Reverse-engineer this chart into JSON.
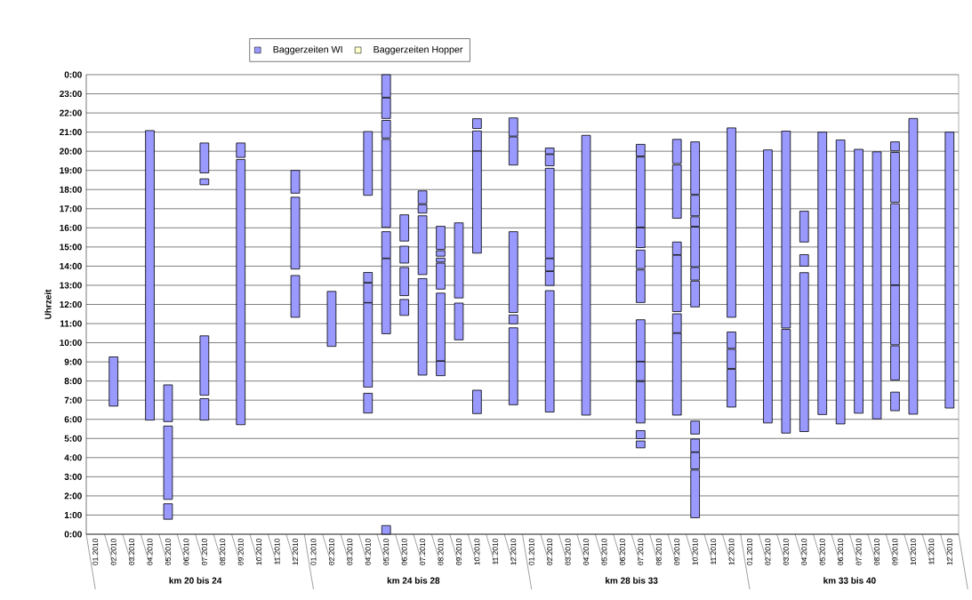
{
  "chart_data": {
    "type": "bar",
    "ylabel": "Uhrzeit",
    "categories": [
      "01.2010",
      "02.2010",
      "03.2010",
      "04.2010",
      "05.2010",
      "06.2010",
      "07.2010",
      "08.2010",
      "09.2010",
      "10.2010",
      "11.2010",
      "12.2010",
      "01.2010",
      "02.2010",
      "03.2010",
      "04.2010",
      "05.2010",
      "06.2010",
      "07.2010",
      "08.2010",
      "09.2010",
      "10.2010",
      "11.2010",
      "12.2010",
      "01.2010",
      "02.2010",
      "03.2010",
      "04.2010",
      "05.2010",
      "06.2010",
      "07.2010",
      "08.2010",
      "09.2010",
      "10.2010",
      "11.2010",
      "12.2010",
      "01.2010",
      "02.2010",
      "03.2010",
      "04.2010",
      "05.2010",
      "06.2010",
      "07.2010",
      "08.2010",
      "09.2010",
      "10.2010",
      "11.2010",
      "12.2010"
    ],
    "annotations": [
      "km 20 bis 24",
      "km 24 bis 28",
      "km 28 bis 33",
      "km 33 bis 40"
    ],
    "ylim": [
      0,
      24
    ],
    "yticks": [
      {
        "value": 0,
        "label": "0:00"
      },
      {
        "value": 1,
        "label": "1:00"
      },
      {
        "value": 2,
        "label": "2:00"
      },
      {
        "value": 3,
        "label": "3:00"
      },
      {
        "value": 4,
        "label": "4:00"
      },
      {
        "value": 5,
        "label": "5:00"
      },
      {
        "value": 6,
        "label": "6:00"
      },
      {
        "value": 7,
        "label": "7:00"
      },
      {
        "value": 8,
        "label": "8:00"
      },
      {
        "value": 9,
        "label": "9:00"
      },
      {
        "value": 10,
        "label": "10:00"
      },
      {
        "value": 11,
        "label": "11:00"
      },
      {
        "value": 12,
        "label": "12:00"
      },
      {
        "value": 13,
        "label": "13:00"
      },
      {
        "value": 14,
        "label": "14:00"
      },
      {
        "value": 15,
        "label": "15:00"
      },
      {
        "value": 16,
        "label": "16:00"
      },
      {
        "value": 17,
        "label": "17:00"
      },
      {
        "value": 18,
        "label": "18:00"
      },
      {
        "value": 19,
        "label": "19:00"
      },
      {
        "value": 20,
        "label": "20:00"
      },
      {
        "value": 21,
        "label": "21:00"
      },
      {
        "value": 22,
        "label": "22:00"
      },
      {
        "value": 23,
        "label": "23:00"
      },
      {
        "value": 24,
        "label": "0:00"
      }
    ],
    "grid": "y",
    "legend": "top",
    "series": [
      {
        "name": "Baggerzeiten WI",
        "color": "#9999ff",
        "base": [
          null,
          6.69,
          null,
          5.96,
          0.78,
          null,
          5.96,
          null,
          5.72,
          null,
          null,
          11.33,
          null,
          9.81,
          null,
          6.33,
          0,
          11.43,
          8.31,
          8.28,
          10.15,
          6.3,
          null,
          6.76,
          null,
          6.38,
          null,
          6.22,
          null,
          null,
          4.51,
          null,
          6.22,
          0.86,
          null,
          6.64,
          null,
          5.81,
          5.28,
          5.36,
          6.25,
          5.76,
          6.32,
          6.02,
          6.45,
          6.27,
          null,
          6.59
        ],
        "values": [
          null,
          2.57,
          null,
          15.12,
          0.81,
          null,
          1.12,
          null,
          13.85,
          null,
          null,
          2.18,
          null,
          2.87,
          null,
          1.03,
          0.45,
          0.83,
          5.04,
          0.75,
          1.92,
          1.22,
          null,
          4.02,
          null,
          6.34,
          null,
          14.61,
          null,
          null,
          0.36,
          null,
          4.27,
          2.49,
          null,
          1.97,
          null,
          14.26,
          5.42,
          8.3,
          14.75,
          14.83,
          13.78,
          13.95,
          0.97,
          15.44,
          null,
          14.41
        ]
      },
      {
        "color": "#9999ff",
        "base": [
          null,
          null,
          null,
          null,
          1.82,
          null,
          7.26,
          null,
          19.68,
          null,
          null,
          13.85,
          null,
          null,
          null,
          7.68,
          10.47,
          12.46,
          13.56,
          9.06,
          12.34,
          14.68,
          null,
          10.99,
          null,
          12.99,
          null,
          null,
          null,
          null,
          4.99,
          null,
          10.52,
          3.41,
          null,
          8.66,
          null,
          null,
          10.77,
          14.0,
          null,
          null,
          null,
          null,
          8.05,
          null,
          null,
          null
        ],
        "values": [
          null,
          null,
          null,
          null,
          3.83,
          null,
          3.1,
          null,
          0.75,
          null,
          null,
          3.75,
          null,
          null,
          null,
          4.4,
          3.92,
          1.47,
          3.07,
          3.53,
          3.92,
          5.33,
          null,
          0.46,
          null,
          0.73,
          null,
          null,
          null,
          null,
          0.42,
          null,
          0.99,
          0.86,
          null,
          1.0,
          null,
          null,
          10.28,
          0.6,
          null,
          null,
          null,
          null,
          1.79,
          null,
          null,
          null
        ]
      },
      {
        "color": "#9999ff",
        "base": [
          null,
          null,
          null,
          null,
          5.88,
          null,
          18.25,
          null,
          null,
          null,
          null,
          17.81,
          null,
          null,
          null,
          12.1,
          14.42,
          14.16,
          16.77,
          12.8,
          null,
          20.02,
          null,
          11.58,
          null,
          13.75,
          null,
          null,
          null,
          null,
          5.81,
          null,
          11.63,
          4.3,
          null,
          9.71,
          null,
          null,
          null,
          15.26,
          null,
          null,
          null,
          null,
          9.89,
          null,
          null,
          null
        ],
        "values": [
          null,
          null,
          null,
          null,
          1.92,
          null,
          0.31,
          null,
          null,
          null,
          null,
          1.19,
          null,
          null,
          null,
          1.02,
          1.38,
          0.88,
          0.44,
          1.36,
          null,
          1.04,
          null,
          4.22,
          null,
          0.64,
          null,
          null,
          null,
          null,
          2.16,
          null,
          2.94,
          0.67,
          null,
          0.85,
          null,
          null,
          null,
          1.61,
          null,
          null,
          null,
          null,
          3.1,
          null,
          null,
          null
        ]
      },
      {
        "color": "#9999ff",
        "base": [
          null,
          null,
          null,
          null,
          null,
          null,
          18.87,
          null,
          null,
          null,
          null,
          null,
          null,
          null,
          null,
          13.15,
          16.03,
          15.31,
          17.26,
          14.21,
          null,
          21.19,
          null,
          19.28,
          null,
          14.42,
          null,
          null,
          null,
          null,
          8.02,
          null,
          14.6,
          5.23,
          null,
          11.33,
          null,
          null,
          null,
          null,
          null,
          null,
          null,
          null,
          13.02,
          null,
          null,
          null
        ],
        "values": [
          null,
          null,
          null,
          null,
          null,
          null,
          1.56,
          null,
          null,
          null,
          null,
          null,
          null,
          null,
          null,
          0.52,
          4.59,
          1.37,
          0.67,
          0.21,
          null,
          0.51,
          null,
          1.47,
          null,
          4.69,
          null,
          null,
          null,
          null,
          0.98,
          null,
          0.66,
          0.68,
          null,
          9.89,
          null,
          null,
          null,
          null,
          null,
          null,
          null,
          null,
          4.24,
          null,
          null,
          null
        ]
      },
      {
        "color": "#9999ff",
        "base": [
          null,
          null,
          null,
          null,
          null,
          null,
          null,
          null,
          null,
          null,
          null,
          null,
          null,
          null,
          null,
          17.7,
          20.69,
          null,
          null,
          14.52,
          null,
          null,
          null,
          20.79,
          null,
          19.24,
          null,
          null,
          null,
          null,
          9.03,
          null,
          16.5,
          11.87,
          null,
          null,
          null,
          null,
          null,
          null,
          null,
          null,
          null,
          null,
          17.33,
          null,
          null,
          null
        ],
        "values": [
          null,
          null,
          null,
          null,
          null,
          null,
          null,
          null,
          null,
          null,
          null,
          null,
          null,
          null,
          null,
          3.33,
          0.92,
          null,
          null,
          0.29,
          null,
          null,
          null,
          0.95,
          null,
          0.59,
          null,
          null,
          null,
          null,
          2.17,
          null,
          2.79,
          1.35,
          null,
          null,
          null,
          null,
          null,
          null,
          null,
          null,
          null,
          null,
          2.61,
          null,
          null,
          null
        ]
      },
      {
        "color": "#9999ff",
        "base": [
          null,
          null,
          null,
          null,
          null,
          null,
          null,
          null,
          null,
          null,
          null,
          null,
          null,
          null,
          null,
          null,
          21.71,
          null,
          null,
          14.87,
          null,
          null,
          null,
          null,
          null,
          19.86,
          null,
          null,
          null,
          null,
          12.1,
          null,
          19.36,
          13.27,
          null,
          null,
          null,
          null,
          null,
          null,
          null,
          null,
          null,
          null,
          20.02,
          null,
          null,
          null
        ],
        "values": [
          null,
          null,
          null,
          null,
          null,
          null,
          null,
          null,
          null,
          null,
          null,
          null,
          null,
          null,
          null,
          null,
          1.07,
          null,
          null,
          1.21,
          null,
          null,
          null,
          null,
          null,
          0.31,
          null,
          null,
          null,
          null,
          1.7,
          null,
          1.26,
          0.66,
          null,
          null,
          null,
          null,
          null,
          null,
          null,
          null,
          null,
          null,
          0.47,
          null,
          null,
          null
        ]
      },
      {
        "color": "#9999ff",
        "base": [
          null,
          null,
          null,
          null,
          null,
          null,
          null,
          null,
          null,
          null,
          null,
          null,
          null,
          null,
          null,
          null,
          22.82,
          null,
          null,
          null,
          null,
          null,
          null,
          null,
          null,
          null,
          null,
          null,
          null,
          null,
          13.87,
          null,
          null,
          13.97,
          null,
          null,
          null,
          null,
          null,
          null,
          null,
          null,
          null,
          null,
          null,
          null,
          null,
          null
        ],
        "values": [
          null,
          null,
          null,
          null,
          null,
          null,
          null,
          null,
          null,
          null,
          null,
          null,
          null,
          null,
          null,
          null,
          1.18,
          null,
          null,
          null,
          null,
          null,
          null,
          null,
          null,
          null,
          null,
          null,
          null,
          null,
          0.97,
          null,
          null,
          2.07,
          null,
          null,
          null,
          null,
          null,
          null,
          null,
          null,
          null,
          null,
          null,
          null,
          null,
          null
        ]
      },
      {
        "color": "#9999ff",
        "base": [
          null,
          null,
          null,
          null,
          null,
          null,
          null,
          null,
          null,
          null,
          null,
          null,
          null,
          null,
          null,
          null,
          null,
          null,
          null,
          null,
          null,
          null,
          null,
          null,
          null,
          null,
          null,
          null,
          null,
          null,
          14.97,
          null,
          null,
          16.08,
          null,
          null,
          null,
          null,
          null,
          null,
          null,
          null,
          null,
          null,
          null,
          null,
          null,
          null
        ],
        "values": [
          null,
          null,
          null,
          null,
          null,
          null,
          null,
          null,
          null,
          null,
          null,
          null,
          null,
          null,
          null,
          null,
          null,
          null,
          null,
          null,
          null,
          null,
          null,
          null,
          null,
          null,
          null,
          null,
          null,
          null,
          1.03,
          null,
          null,
          0.5,
          null,
          null,
          null,
          null,
          null,
          null,
          null,
          null,
          null,
          null,
          null,
          null,
          null,
          null
        ]
      },
      {
        "color": "#9999ff",
        "base": [
          null,
          null,
          null,
          null,
          null,
          null,
          null,
          null,
          null,
          null,
          null,
          null,
          null,
          null,
          null,
          null,
          null,
          null,
          null,
          null,
          null,
          null,
          null,
          null,
          null,
          null,
          null,
          null,
          null,
          null,
          16.04,
          null,
          null,
          16.63,
          null,
          null,
          null,
          null,
          null,
          null,
          null,
          null,
          null,
          null,
          null,
          null,
          null,
          null
        ],
        "values": [
          null,
          null,
          null,
          null,
          null,
          null,
          null,
          null,
          null,
          null,
          null,
          null,
          null,
          null,
          null,
          null,
          null,
          null,
          null,
          null,
          null,
          null,
          null,
          null,
          null,
          null,
          null,
          null,
          null,
          null,
          3.66,
          null,
          null,
          1.07,
          null,
          null,
          null,
          null,
          null,
          null,
          null,
          null,
          null,
          null,
          null,
          null,
          null,
          null
        ]
      },
      {
        "color": "#9999ff",
        "base": [
          null,
          null,
          null,
          null,
          null,
          null,
          null,
          null,
          null,
          null,
          null,
          null,
          null,
          null,
          null,
          null,
          null,
          null,
          null,
          null,
          null,
          null,
          null,
          null,
          null,
          null,
          null,
          null,
          null,
          null,
          19.75,
          null,
          null,
          17.75,
          null,
          null,
          null,
          null,
          null,
          null,
          null,
          null,
          null,
          null,
          null,
          null,
          null,
          null
        ],
        "values": [
          null,
          null,
          null,
          null,
          null,
          null,
          null,
          null,
          null,
          null,
          null,
          null,
          null,
          null,
          null,
          null,
          null,
          null,
          null,
          null,
          null,
          null,
          null,
          null,
          null,
          null,
          null,
          null,
          null,
          null,
          0.61,
          null,
          null,
          2.74,
          null,
          null,
          null,
          null,
          null,
          null,
          null,
          null,
          null,
          null,
          null,
          null,
          null,
          null
        ]
      },
      {
        "name": "Baggerzeiten Hopper",
        "color": "#ffffcc",
        "values": [
          null,
          null,
          null,
          null,
          null,
          null,
          null,
          null,
          null,
          null,
          null,
          null,
          null,
          null,
          null,
          null,
          null,
          null,
          null,
          null,
          null,
          null,
          null,
          null,
          null,
          null,
          null,
          null,
          null,
          null,
          null,
          null,
          null,
          null,
          null,
          null,
          null,
          null,
          null,
          null,
          null,
          null,
          null,
          null,
          null,
          null,
          null,
          null
        ]
      }
    ]
  }
}
